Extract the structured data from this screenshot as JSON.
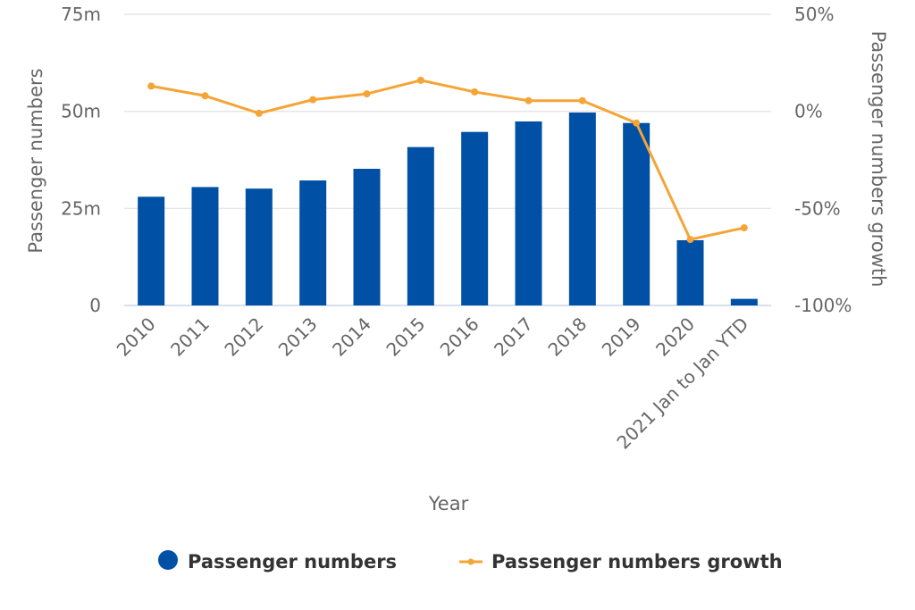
{
  "chart_data": {
    "type": "bar",
    "categories": [
      "2010",
      "2011",
      "2012",
      "2013",
      "2014",
      "2015",
      "2016",
      "2017",
      "2018",
      "2019",
      "2020",
      "2021 Jan to Jan YTD"
    ],
    "series": [
      {
        "name": "Passenger numbers",
        "type": "bar",
        "axis": "left",
        "color": "#0051a5",
        "values": [
          28.0,
          30.5,
          30.1,
          32.2,
          35.2,
          40.8,
          44.7,
          47.4,
          49.7,
          47.0,
          16.8,
          1.7
        ]
      },
      {
        "name": "Passenger numbers growth",
        "type": "line",
        "axis": "right",
        "color": "#f5a436",
        "values": [
          13,
          8,
          -1,
          6,
          9,
          16,
          10,
          5.5,
          5.5,
          -6,
          -66,
          -60
        ]
      }
    ],
    "xlabel": "Year",
    "ylabel": "Passenger numbers",
    "y2label": "Passenger numbers growth",
    "ylim": [
      0,
      75
    ],
    "y2lim": [
      -100,
      50
    ],
    "yticks": [
      "0",
      "25m",
      "50m",
      "75m"
    ],
    "ytick_values": [
      0,
      25,
      50,
      75
    ],
    "y2ticks": [
      "-100%",
      "-50%",
      "0%",
      "50%"
    ],
    "y2tick_values": [
      -100,
      -50,
      0,
      50
    ],
    "grid": true,
    "legend_position": "bottom"
  }
}
